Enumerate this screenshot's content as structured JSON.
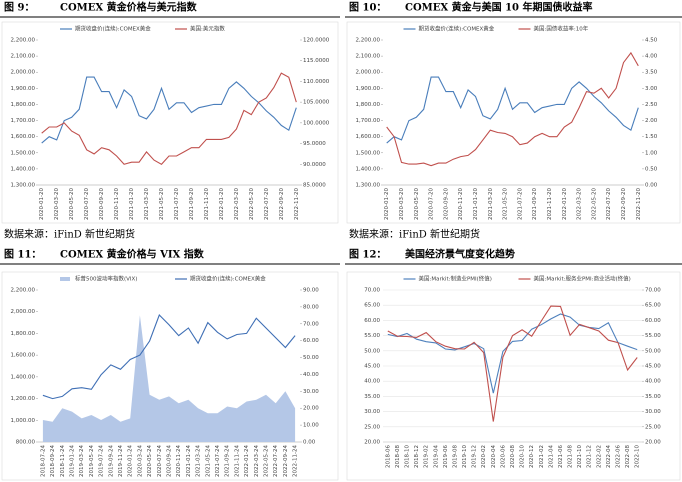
{
  "chart_data": [
    {
      "type": "line",
      "label": "图 9：",
      "title": "COMEX 黄金价格与美元指数",
      "source": "数据来源：iFinD 新世纪期货",
      "categories": [
        "2020-01-20",
        null,
        "2020-03-20",
        null,
        "2020-05-20",
        null,
        "2020-07-20",
        null,
        "2020-09-20",
        null,
        "2020-11-20",
        null,
        "2021-01-20",
        null,
        "2021-03-20",
        null,
        "2021-05-20",
        null,
        "2021-07-20",
        null,
        "2021-09-20",
        null,
        "2021-11-20",
        null,
        "2022-01-20",
        null,
        "2022-03-20",
        null,
        "2022-05-20",
        null,
        "2022-07-20",
        null,
        "2022-09-20",
        null,
        "2022-11-20"
      ],
      "series": [
        {
          "name": "期货收盘价(连续):COMEX黄金",
          "color": "#4a7ebb",
          "values": [
            1560,
            1600,
            1580,
            1700,
            1720,
            1770,
            1970,
            1970,
            1880,
            1880,
            1780,
            1890,
            1850,
            1730,
            1710,
            1770,
            1900,
            1770,
            1810,
            1810,
            1750,
            1780,
            1790,
            1800,
            1800,
            1900,
            1940,
            1900,
            1850,
            1810,
            1760,
            1720,
            1670,
            1640,
            1780
          ]
        },
        {
          "name": "美国:美元指数",
          "color": "#c0504d",
          "axis": "y2",
          "values": [
            97.5,
            99,
            99,
            100,
            98,
            97,
            93.5,
            92.5,
            94,
            93.5,
            92,
            90,
            90.5,
            90.5,
            93,
            91,
            90,
            92,
            92,
            93,
            94,
            94,
            96,
            96,
            96,
            96.5,
            98.5,
            103,
            102,
            105,
            106,
            108.5,
            112,
            111,
            105
          ]
        }
      ],
      "ylim": [
        1300,
        2200
      ],
      "yticks": [
        {
          "value": 1300,
          "label": "1,300.00"
        },
        {
          "value": 1400,
          "label": "1,400.00"
        },
        {
          "value": 1500,
          "label": "1,500.00"
        },
        {
          "value": 1600,
          "label": "1,600.00"
        },
        {
          "value": 1700,
          "label": "1,700.00"
        },
        {
          "value": 1800,
          "label": "1,800.00"
        },
        {
          "value": 1900,
          "label": "1,900.00"
        },
        {
          "value": 2000,
          "label": "2,000.00"
        },
        {
          "value": 2100,
          "label": "2,100.00"
        },
        {
          "value": 2200,
          "label": "2,200.00"
        }
      ],
      "y2lim": [
        85,
        120
      ],
      "y2ticks": [
        {
          "value": 85,
          "label": "85.0000"
        },
        {
          "value": 90,
          "label": "90.0000"
        },
        {
          "value": 95,
          "label": "95.0000"
        },
        {
          "value": 100,
          "label": "100.0000"
        },
        {
          "value": 105,
          "label": "105.0000"
        },
        {
          "value": 110,
          "label": "110.0000"
        },
        {
          "value": 115,
          "label": "115.0000"
        },
        {
          "value": 120,
          "label": "120.0000"
        }
      ],
      "grid": false
    },
    {
      "type": "line",
      "label": "图 10：",
      "title": "COMEX 黄金与美国 10 年期国债收益率",
      "source": "数据来源：iFinD 新世纪期货",
      "categories": [
        "2020-01-20",
        null,
        "2020-03-20",
        null,
        "2020-05-20",
        null,
        "2020-07-20",
        null,
        "2020-09-20",
        null,
        "2020-11-20",
        null,
        "2021-01-20",
        null,
        "2021-03-20",
        null,
        "2021-05-20",
        null,
        "2021-07-20",
        null,
        "2021-09-20",
        null,
        "2021-11-20",
        null,
        "2022-01-20",
        null,
        "2022-03-20",
        null,
        "2022-05-20",
        null,
        "2022-07-20",
        null,
        "2022-09-20",
        null,
        "2022-11-20"
      ],
      "series": [
        {
          "name": "期货收盘价(连续):COMEX黄金",
          "color": "#4a7ebb",
          "values": [
            1560,
            1600,
            1580,
            1700,
            1720,
            1770,
            1970,
            1970,
            1880,
            1880,
            1780,
            1890,
            1850,
            1730,
            1710,
            1770,
            1900,
            1770,
            1810,
            1810,
            1750,
            1780,
            1790,
            1800,
            1800,
            1900,
            1940,
            1900,
            1850,
            1810,
            1760,
            1720,
            1670,
            1640,
            1780
          ]
        },
        {
          "name": "美国:国债收益率:10年",
          "color": "#c0504d",
          "axis": "y2",
          "values": [
            1.8,
            1.5,
            0.7,
            0.65,
            0.65,
            0.68,
            0.6,
            0.68,
            0.68,
            0.8,
            0.88,
            0.92,
            1.1,
            1.4,
            1.7,
            1.63,
            1.6,
            1.5,
            1.25,
            1.3,
            1.5,
            1.6,
            1.5,
            1.5,
            1.8,
            1.95,
            2.4,
            2.9,
            2.85,
            3.0,
            2.7,
            3.0,
            3.8,
            4.1,
            3.7
          ]
        }
      ],
      "ylim": [
        1300,
        2200
      ],
      "yticks": [
        {
          "value": 1300,
          "label": "1,300.00"
        },
        {
          "value": 1400,
          "label": "1,400.00"
        },
        {
          "value": 1500,
          "label": "1,500.00"
        },
        {
          "value": 1600,
          "label": "1,600.00"
        },
        {
          "value": 1700,
          "label": "1,700.00"
        },
        {
          "value": 1800,
          "label": "1,800.00"
        },
        {
          "value": 1900,
          "label": "1,900.00"
        },
        {
          "value": 2000,
          "label": "2,000.00"
        },
        {
          "value": 2100,
          "label": "2,100.00"
        },
        {
          "value": 2200,
          "label": "2,200.00"
        }
      ],
      "y2lim": [
        0,
        4.5
      ],
      "y2ticks": [
        {
          "value": 0,
          "label": "0.00"
        },
        {
          "value": 0.5,
          "label": "0.50"
        },
        {
          "value": 1,
          "label": "1.00"
        },
        {
          "value": 1.5,
          "label": "1.50"
        },
        {
          "value": 2,
          "label": "2.00"
        },
        {
          "value": 2.5,
          "label": "2.50"
        },
        {
          "value": 3,
          "label": "3.00"
        },
        {
          "value": 3.5,
          "label": "3.50"
        },
        {
          "value": 4,
          "label": "4.00"
        },
        {
          "value": 4.5,
          "label": "4.50"
        }
      ],
      "grid": false
    },
    {
      "type": "line",
      "label": "图 11：",
      "title": "COMEX 黄金价格与 VIX 指数",
      "categories": [
        "2018-07-24",
        "2018-09-24",
        "2018-11-24",
        "2019-01-24",
        "2019-03-24",
        "2019-05-24",
        "2019-07-24",
        "2019-09-24",
        "2019-11-24",
        "2020-01-24",
        "2020-03-24",
        "2020-05-24",
        "2020-07-24",
        "2020-09-24",
        "2020-11-24",
        "2021-01-24",
        "2021-03-24",
        "2021-05-24",
        "2021-07-24",
        "2021-09-24",
        "2021-11-24",
        "2022-01-24",
        "2022-03-24",
        "2022-05-24",
        "2022-07-24",
        "2022-09-24",
        "2022-11-24"
      ],
      "series": [
        {
          "name": "标普500波动率指数(VIX)",
          "color": "#b4c7e7",
          "axis": "y2",
          "style": "area",
          "values": [
            13,
            12,
            20,
            18,
            14,
            16,
            13,
            16,
            12,
            14,
            75,
            28,
            25,
            27,
            23,
            25,
            20,
            17,
            17,
            21,
            20,
            24,
            25,
            28,
            23,
            30,
            20
          ]
        },
        {
          "name": "期货收盘价(连续):COMEX黄金",
          "color": "#3f6fb5",
          "values": [
            1230,
            1200,
            1220,
            1290,
            1300,
            1285,
            1420,
            1510,
            1470,
            1560,
            1600,
            1730,
            1970,
            1880,
            1780,
            1850,
            1710,
            1900,
            1810,
            1750,
            1790,
            1800,
            1940,
            1850,
            1760,
            1670,
            1780
          ]
        }
      ],
      "ylim": [
        800,
        2200
      ],
      "yticks": [
        {
          "value": 800,
          "label": "800.00"
        },
        {
          "value": 1000,
          "label": "1,000.00"
        },
        {
          "value": 1200,
          "label": "1,200.00"
        },
        {
          "value": 1400,
          "label": "1,400.00"
        },
        {
          "value": 1600,
          "label": "1,600.00"
        },
        {
          "value": 1800,
          "label": "1,800.00"
        },
        {
          "value": 2000,
          "label": "2,000.00"
        },
        {
          "value": 2200,
          "label": "2,200.00"
        }
      ],
      "y2lim": [
        0,
        90
      ],
      "y2ticks": [
        {
          "value": 0,
          "label": "0.00"
        },
        {
          "value": 10,
          "label": "10.00"
        },
        {
          "value": 20,
          "label": "20.00"
        },
        {
          "value": 30,
          "label": "30.00"
        },
        {
          "value": 40,
          "label": "40.00"
        },
        {
          "value": 50,
          "label": "50.00"
        },
        {
          "value": 60,
          "label": "60.00"
        },
        {
          "value": 70,
          "label": "70.00"
        },
        {
          "value": 80,
          "label": "80.00"
        },
        {
          "value": 90,
          "label": "90.00"
        }
      ],
      "grid": false
    },
    {
      "type": "line",
      "label": "图 12：",
      "title": "美国经济景气度变化趋势",
      "categories": [
        "2018-06",
        "2018-08",
        "2018-10",
        "2018-12",
        "2019-02",
        "2019-04",
        "2019-06",
        "2019-08",
        "2019-10",
        "2019-12",
        "2020-02",
        "2020-04",
        "2020-06",
        "2020-08",
        "2020-10",
        "2020-12",
        "2021-02",
        "2021-04",
        "2021-06",
        "2021-08",
        "2021-10",
        "2021-12",
        "2022-02",
        "2022-04",
        "2022-06",
        "2022-08",
        "2022-10"
      ],
      "series": [
        {
          "name": "美国:Markit:制造业PMI(终值)",
          "color": "#4f81bd",
          "values": [
            55.4,
            54.7,
            55.7,
            53.8,
            53.0,
            52.6,
            50.6,
            50.3,
            51.3,
            52.4,
            50.7,
            36.1,
            49.8,
            53.1,
            53.4,
            57.1,
            58.6,
            60.5,
            62.1,
            61.1,
            58.4,
            57.7,
            57.3,
            59.2,
            52.7,
            51.5,
            50.4
          ]
        },
        {
          "name": "美国:Markit:服务业PMI:商业活动(终值)",
          "color": "#c0504d",
          "axis": "y2",
          "values": [
            56.5,
            54.8,
            54.7,
            54.4,
            56.0,
            53.0,
            51.5,
            50.7,
            50.6,
            52.8,
            49.4,
            26.7,
            47.9,
            55.0,
            56.9,
            54.8,
            59.8,
            64.7,
            64.6,
            55.1,
            58.7,
            57.6,
            56.5,
            53.5,
            52.7,
            43.7,
            47.8
          ]
        }
      ],
      "ylim": [
        20,
        70
      ],
      "yticks": [
        {
          "value": 20,
          "label": "20.00"
        },
        {
          "value": 25,
          "label": "25.00"
        },
        {
          "value": 30,
          "label": "30.00"
        },
        {
          "value": 35,
          "label": "35.00"
        },
        {
          "value": 40,
          "label": "40.00"
        },
        {
          "value": 45,
          "label": "45.00"
        },
        {
          "value": 50,
          "label": "50.00"
        },
        {
          "value": 55,
          "label": "55.00"
        },
        {
          "value": 60,
          "label": "60.00"
        },
        {
          "value": 65,
          "label": "65.00"
        },
        {
          "value": 70,
          "label": "70.00"
        }
      ],
      "y2lim": [
        20,
        70
      ],
      "y2ticks": [
        {
          "value": 20,
          "label": "20.00"
        },
        {
          "value": 25,
          "label": "25.00"
        },
        {
          "value": 30,
          "label": "30.00"
        },
        {
          "value": 35,
          "label": "35.00"
        },
        {
          "value": 40,
          "label": "40.00"
        },
        {
          "value": 45,
          "label": "45.00"
        },
        {
          "value": 50,
          "label": "50.00"
        },
        {
          "value": 55,
          "label": "55.00"
        },
        {
          "value": 60,
          "label": "60.00"
        },
        {
          "value": 65,
          "label": "65.00"
        },
        {
          "value": 70,
          "label": "70.00"
        }
      ],
      "grid": true
    }
  ]
}
